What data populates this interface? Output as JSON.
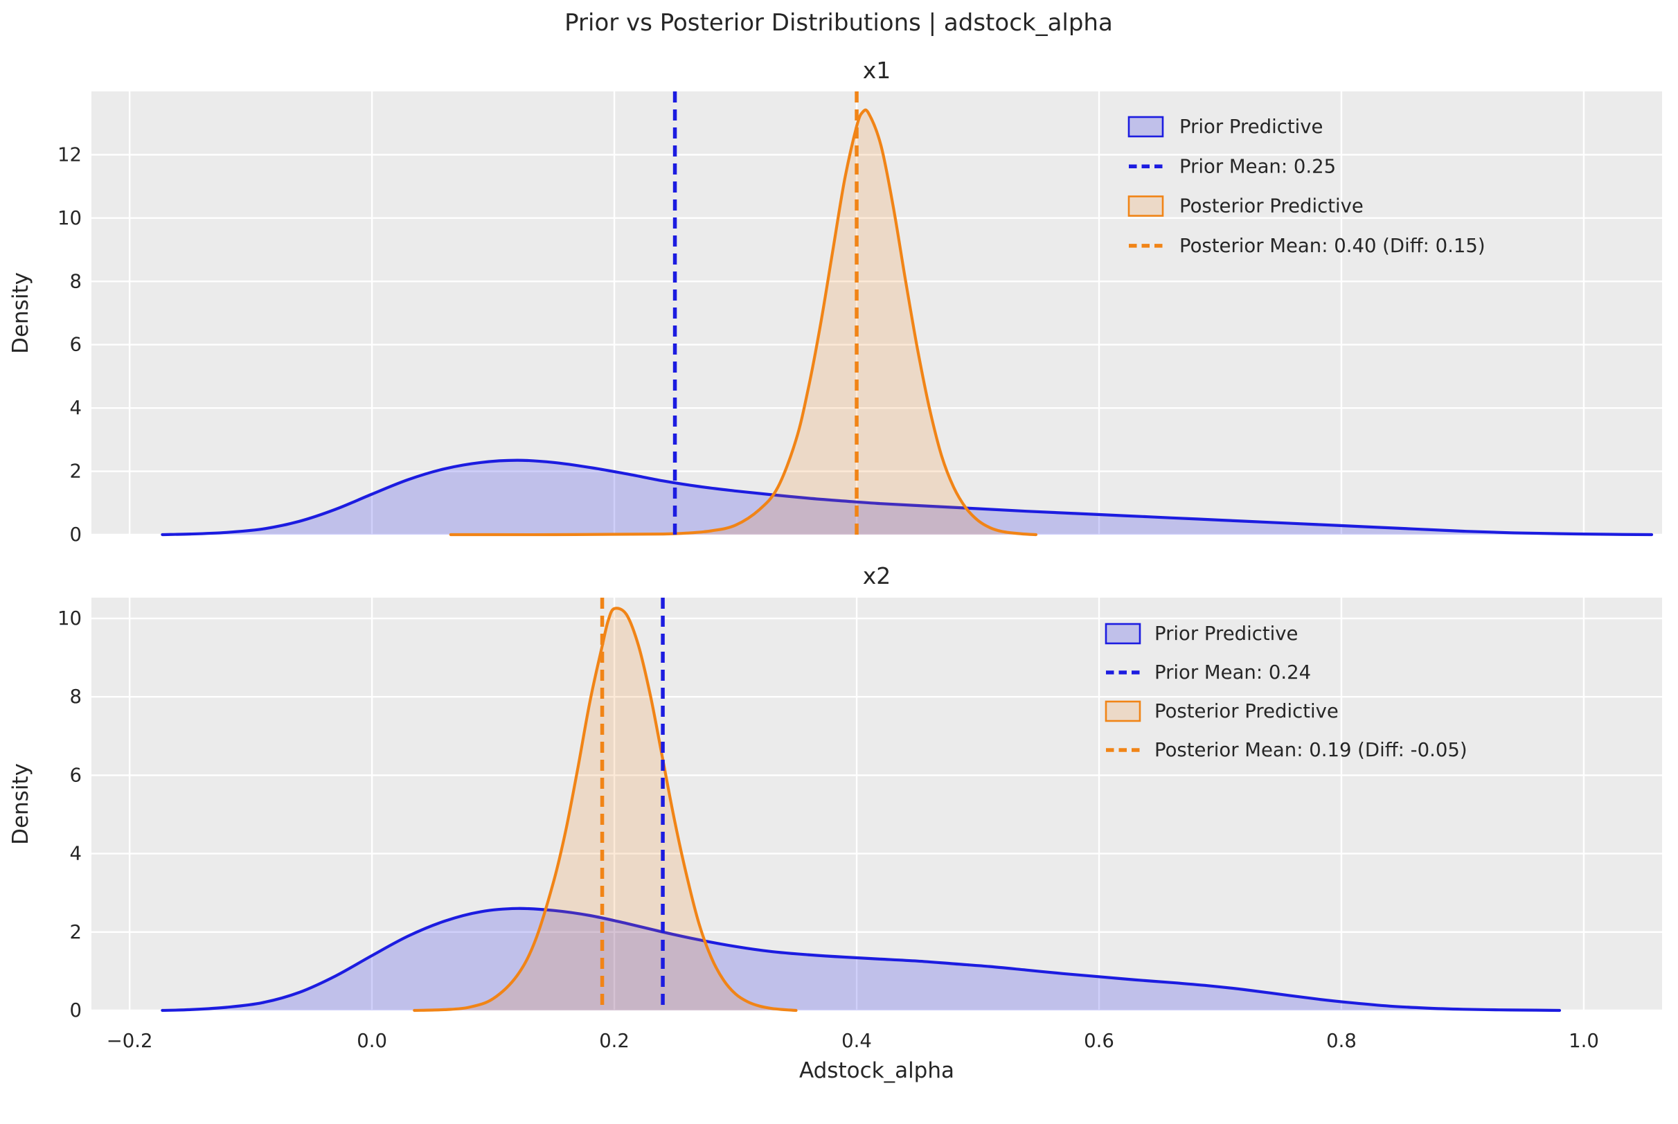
{
  "figure": {
    "title": "Prior vs Posterior Distributions | adstock_alpha",
    "xlabel": "Adstock_alpha",
    "ylabel": "Density"
  },
  "colors": {
    "prior": "#1c1ce0",
    "prior_fill": "rgba(20,20,230,0.20)",
    "posterior": "#f18416",
    "posterior_fill": "rgba(241,132,22,0.17)",
    "axes_bg": "#ebebeb",
    "grid": "#ffffff",
    "text": "#262626"
  },
  "chart_data": [
    {
      "type": "area",
      "title": "x1",
      "ylabel": "Density",
      "xlim": [
        -0.2315,
        1.0646
      ],
      "ylim": [
        0,
        14.0
      ],
      "xticks": [
        -0.2,
        0.0,
        0.2,
        0.4,
        0.6,
        0.8,
        1.0
      ],
      "xtick_labels": [
        "−0.2",
        "0.0",
        "0.2",
        "0.4",
        "0.6",
        "0.8",
        "1.0"
      ],
      "show_xtick_labels": false,
      "yticks": [
        0,
        2,
        4,
        6,
        8,
        10,
        12
      ],
      "grid": true,
      "legend_position": "upper-right",
      "prior_mean": 0.25,
      "posterior_mean": 0.4,
      "diff": 0.15,
      "series": [
        {
          "name": "Prior Predictive",
          "color": "prior",
          "fill": "prior_fill",
          "points": [
            [
              -0.173,
              0
            ],
            [
              -0.15,
              0.02
            ],
            [
              -0.12,
              0.07
            ],
            [
              -0.09,
              0.18
            ],
            [
              -0.06,
              0.42
            ],
            [
              -0.03,
              0.8
            ],
            [
              0.0,
              1.28
            ],
            [
              0.03,
              1.74
            ],
            [
              0.06,
              2.08
            ],
            [
              0.09,
              2.28
            ],
            [
              0.12,
              2.35
            ],
            [
              0.15,
              2.28
            ],
            [
              0.18,
              2.12
            ],
            [
              0.21,
              1.92
            ],
            [
              0.24,
              1.7
            ],
            [
              0.27,
              1.52
            ],
            [
              0.3,
              1.38
            ],
            [
              0.33,
              1.26
            ],
            [
              0.36,
              1.15
            ],
            [
              0.39,
              1.06
            ],
            [
              0.42,
              0.98
            ],
            [
              0.46,
              0.9
            ],
            [
              0.5,
              0.82
            ],
            [
              0.54,
              0.74
            ],
            [
              0.58,
              0.67
            ],
            [
              0.62,
              0.6
            ],
            [
              0.66,
              0.53
            ],
            [
              0.7,
              0.46
            ],
            [
              0.74,
              0.39
            ],
            [
              0.78,
              0.32
            ],
            [
              0.82,
              0.25
            ],
            [
              0.86,
              0.18
            ],
            [
              0.9,
              0.11
            ],
            [
              0.94,
              0.06
            ],
            [
              0.98,
              0.03
            ],
            [
              1.02,
              0.01
            ],
            [
              1.056,
              0.0
            ]
          ]
        },
        {
          "name": "Posterior Predictive",
          "color": "posterior",
          "fill": "posterior_fill",
          "points": [
            [
              0.065,
              0
            ],
            [
              0.1,
              0
            ],
            [
              0.15,
              0
            ],
            [
              0.2,
              0.01
            ],
            [
              0.24,
              0.02
            ],
            [
              0.26,
              0.05
            ],
            [
              0.28,
              0.12
            ],
            [
              0.3,
              0.3
            ],
            [
              0.32,
              0.8
            ],
            [
              0.335,
              1.5
            ],
            [
              0.35,
              3.0
            ],
            [
              0.36,
              4.6
            ],
            [
              0.37,
              6.6
            ],
            [
              0.38,
              8.9
            ],
            [
              0.39,
              11.2
            ],
            [
              0.4,
              12.9
            ],
            [
              0.405,
              13.35
            ],
            [
              0.41,
              13.3
            ],
            [
              0.42,
              12.3
            ],
            [
              0.43,
              10.4
            ],
            [
              0.44,
              8.1
            ],
            [
              0.45,
              5.9
            ],
            [
              0.46,
              4.0
            ],
            [
              0.47,
              2.5
            ],
            [
              0.48,
              1.5
            ],
            [
              0.49,
              0.85
            ],
            [
              0.5,
              0.45
            ],
            [
              0.51,
              0.22
            ],
            [
              0.52,
              0.1
            ],
            [
              0.535,
              0.03
            ],
            [
              0.548,
              0
            ]
          ]
        }
      ],
      "mean_lines": [
        {
          "label": "Prior Mean: 0.25",
          "x": 0.25,
          "color": "prior"
        },
        {
          "label": "Posterior Mean: 0.40 (Diff: 0.15)",
          "x": 0.4,
          "color": "posterior"
        }
      ],
      "legend": [
        {
          "type": "patch",
          "color": "prior",
          "fill": "prior_fill",
          "label": "Prior Predictive"
        },
        {
          "type": "dash",
          "color": "prior",
          "label": "Prior Mean: 0.25"
        },
        {
          "type": "patch",
          "color": "posterior",
          "fill": "posterior_fill",
          "label": "Posterior Predictive"
        },
        {
          "type": "dash",
          "color": "posterior",
          "label": "Posterior Mean: 0.40 (Diff: 0.15)"
        }
      ]
    },
    {
      "type": "area",
      "title": "x2",
      "ylabel": "Density",
      "xlim": [
        -0.2315,
        1.0646
      ],
      "ylim": [
        0,
        10.53
      ],
      "xticks": [
        -0.2,
        0.0,
        0.2,
        0.4,
        0.6,
        0.8,
        1.0
      ],
      "xtick_labels": [
        "−0.2",
        "0.0",
        "0.2",
        "0.4",
        "0.6",
        "0.8",
        "1.0"
      ],
      "show_xtick_labels": true,
      "yticks": [
        0,
        2,
        4,
        6,
        8,
        10
      ],
      "grid": true,
      "legend_position": "upper-right",
      "prior_mean": 0.24,
      "posterior_mean": 0.19,
      "diff": -0.05,
      "series": [
        {
          "name": "Prior Predictive",
          "color": "prior",
          "fill": "prior_fill",
          "points": [
            [
              -0.173,
              0
            ],
            [
              -0.15,
              0.02
            ],
            [
              -0.12,
              0.08
            ],
            [
              -0.09,
              0.2
            ],
            [
              -0.06,
              0.46
            ],
            [
              -0.03,
              0.88
            ],
            [
              0.0,
              1.4
            ],
            [
              0.03,
              1.9
            ],
            [
              0.06,
              2.28
            ],
            [
              0.09,
              2.52
            ],
            [
              0.12,
              2.6
            ],
            [
              0.15,
              2.55
            ],
            [
              0.18,
              2.42
            ],
            [
              0.21,
              2.22
            ],
            [
              0.24,
              2.0
            ],
            [
              0.27,
              1.8
            ],
            [
              0.3,
              1.63
            ],
            [
              0.33,
              1.5
            ],
            [
              0.36,
              1.42
            ],
            [
              0.39,
              1.36
            ],
            [
              0.42,
              1.31
            ],
            [
              0.45,
              1.26
            ],
            [
              0.48,
              1.19
            ],
            [
              0.51,
              1.12
            ],
            [
              0.54,
              1.03
            ],
            [
              0.57,
              0.94
            ],
            [
              0.6,
              0.86
            ],
            [
              0.63,
              0.78
            ],
            [
              0.66,
              0.71
            ],
            [
              0.69,
              0.63
            ],
            [
              0.72,
              0.53
            ],
            [
              0.75,
              0.41
            ],
            [
              0.78,
              0.29
            ],
            [
              0.81,
              0.19
            ],
            [
              0.84,
              0.11
            ],
            [
              0.87,
              0.06
            ],
            [
              0.9,
              0.03
            ],
            [
              0.93,
              0.015
            ],
            [
              0.96,
              0.007
            ],
            [
              0.98,
              0
            ]
          ]
        },
        {
          "name": "Posterior Predictive",
          "color": "posterior",
          "fill": "posterior_fill",
          "points": [
            [
              0.035,
              0
            ],
            [
              0.06,
              0.02
            ],
            [
              0.08,
              0.08
            ],
            [
              0.1,
              0.3
            ],
            [
              0.12,
              0.9
            ],
            [
              0.135,
              1.8
            ],
            [
              0.15,
              3.3
            ],
            [
              0.16,
              4.6
            ],
            [
              0.17,
              6.2
            ],
            [
              0.18,
              7.9
            ],
            [
              0.19,
              9.3
            ],
            [
              0.195,
              9.95
            ],
            [
              0.2,
              10.25
            ],
            [
              0.21,
              10.1
            ],
            [
              0.22,
              9.3
            ],
            [
              0.23,
              8.0
            ],
            [
              0.24,
              6.4
            ],
            [
              0.25,
              4.8
            ],
            [
              0.26,
              3.4
            ],
            [
              0.27,
              2.2
            ],
            [
              0.28,
              1.35
            ],
            [
              0.29,
              0.78
            ],
            [
              0.3,
              0.42
            ],
            [
              0.31,
              0.22
            ],
            [
              0.32,
              0.11
            ],
            [
              0.33,
              0.05
            ],
            [
              0.34,
              0.02
            ],
            [
              0.35,
              0
            ]
          ]
        }
      ],
      "mean_lines": [
        {
          "label": "Posterior Mean: 0.19 (Diff: -0.05)",
          "x": 0.19,
          "color": "posterior"
        },
        {
          "label": "Prior Mean: 0.24",
          "x": 0.24,
          "color": "prior"
        }
      ],
      "legend": [
        {
          "type": "patch",
          "color": "prior",
          "fill": "prior_fill",
          "label": "Prior Predictive"
        },
        {
          "type": "dash",
          "color": "prior",
          "label": "Prior Mean: 0.24"
        },
        {
          "type": "patch",
          "color": "posterior",
          "fill": "posterior_fill",
          "label": "Posterior Predictive"
        },
        {
          "type": "dash",
          "color": "posterior",
          "label": "Posterior Mean: 0.19 (Diff: -0.05)"
        }
      ]
    }
  ]
}
